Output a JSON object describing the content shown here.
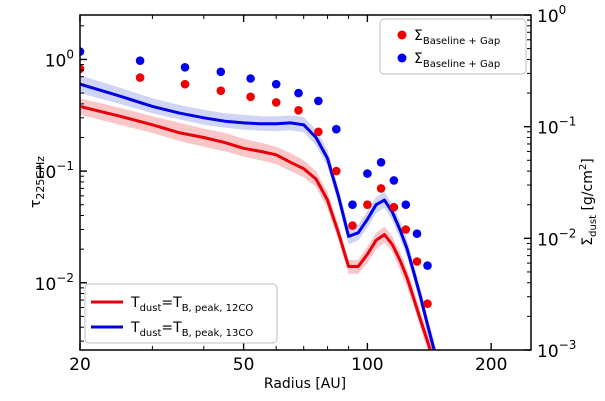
{
  "chart_data": {
    "type": "line",
    "xlabel": "Radius [AU]",
    "ylabel": {
      "base": "τ",
      "sub": "225GHz"
    },
    "y2label": {
      "base": "Σ",
      "sub": "dust",
      "suffix": " [g/cm",
      "sup": "2",
      "end": "]"
    },
    "x_scale": "log",
    "y_scale": "log",
    "y2_scale": "log",
    "xlim": [
      20,
      250
    ],
    "ylim": [
      0.0025,
      2.5
    ],
    "y2lim": [
      0.001,
      1.0
    ],
    "x_ticks": [
      {
        "value": 20,
        "label": "20"
      },
      {
        "value": 50,
        "label": "50"
      },
      {
        "value": 100,
        "label": "100"
      },
      {
        "value": 200,
        "label": "200"
      }
    ],
    "y_ticks": [
      {
        "value": 0.01,
        "base": "10",
        "exp": "−2"
      },
      {
        "value": 0.1,
        "base": "10",
        "exp": "−1"
      },
      {
        "value": 1,
        "base": "10",
        "exp": "0"
      }
    ],
    "y2_ticks": [
      {
        "value": 0.001,
        "base": "10",
        "exp": "−3"
      },
      {
        "value": 0.01,
        "base": "10",
        "exp": "−2"
      },
      {
        "value": 0.1,
        "base": "10",
        "exp": "−1"
      },
      {
        "value": 1,
        "base": "10",
        "exp": "0"
      }
    ],
    "line_series": [
      {
        "color": "#e8000b",
        "band_color": "#e8000b",
        "legend": {
          "base": "T",
          "sub1": "dust",
          "mid": "=T",
          "sub2": "B, peak, 12CO"
        },
        "x": [
          20,
          25,
          30,
          35,
          40,
          45,
          50,
          55,
          60,
          65,
          70,
          75,
          80,
          85,
          90,
          95,
          100,
          105,
          110,
          115,
          120,
          125,
          130,
          135,
          140,
          145
        ],
        "y": [
          0.38,
          0.31,
          0.26,
          0.22,
          0.2,
          0.18,
          0.16,
          0.15,
          0.14,
          0.12,
          0.105,
          0.085,
          0.055,
          0.028,
          0.014,
          0.014,
          0.018,
          0.024,
          0.027,
          0.022,
          0.016,
          0.011,
          0.007,
          0.0045,
          0.003,
          0.002
        ],
        "lo": [
          0.32,
          0.26,
          0.22,
          0.185,
          0.165,
          0.15,
          0.135,
          0.125,
          0.115,
          0.1,
          0.088,
          0.072,
          0.046,
          0.024,
          0.012,
          0.012,
          0.015,
          0.02,
          0.023,
          0.019,
          0.013,
          0.009,
          0.006,
          0.0038,
          0.0025,
          0.0017
        ],
        "hi": [
          0.45,
          0.37,
          0.31,
          0.27,
          0.24,
          0.22,
          0.195,
          0.18,
          0.165,
          0.145,
          0.125,
          0.1,
          0.065,
          0.033,
          0.016,
          0.016,
          0.021,
          0.028,
          0.032,
          0.026,
          0.019,
          0.013,
          0.0085,
          0.0053,
          0.0036,
          0.0024
        ]
      },
      {
        "color": "#0000e6",
        "band_color": "#2b3fd0",
        "legend": {
          "base": "T",
          "sub1": "dust",
          "mid": "=T",
          "sub2": "B, peak, 13CO"
        },
        "x": [
          20,
          25,
          30,
          35,
          40,
          45,
          50,
          55,
          60,
          65,
          70,
          75,
          80,
          85,
          90,
          95,
          100,
          105,
          110,
          115,
          120,
          125,
          130,
          135,
          140,
          145,
          150
        ],
        "y": [
          0.6,
          0.47,
          0.38,
          0.33,
          0.3,
          0.28,
          0.27,
          0.265,
          0.265,
          0.27,
          0.26,
          0.2,
          0.13,
          0.06,
          0.026,
          0.028,
          0.037,
          0.05,
          0.055,
          0.043,
          0.03,
          0.02,
          0.012,
          0.0072,
          0.0042,
          0.0026,
          0.0015
        ],
        "lo": [
          0.5,
          0.4,
          0.33,
          0.29,
          0.26,
          0.245,
          0.235,
          0.23,
          0.228,
          0.232,
          0.222,
          0.17,
          0.11,
          0.051,
          0.022,
          0.024,
          0.031,
          0.042,
          0.047,
          0.036,
          0.025,
          0.017,
          0.0102,
          0.0061,
          0.0036,
          0.0022,
          0.0013
        ],
        "hi": [
          0.72,
          0.56,
          0.45,
          0.39,
          0.355,
          0.33,
          0.32,
          0.31,
          0.31,
          0.315,
          0.305,
          0.235,
          0.155,
          0.071,
          0.031,
          0.033,
          0.044,
          0.059,
          0.065,
          0.051,
          0.036,
          0.024,
          0.0142,
          0.0085,
          0.005,
          0.0031,
          0.0018
        ]
      }
    ],
    "scatter_series": [
      {
        "color": "#f00000",
        "legend": {
          "base": "Σ",
          "sub": "Baseline + Gap"
        },
        "x": [
          20,
          28,
          36,
          44,
          52,
          60,
          68,
          76,
          84,
          92,
          100,
          108,
          116,
          124,
          132,
          140
        ],
        "y": [
          0.33,
          0.275,
          0.24,
          0.21,
          0.185,
          0.165,
          0.14,
          0.09,
          0.04,
          0.013,
          0.02,
          0.028,
          0.019,
          0.012,
          0.0062,
          0.0026
        ]
      },
      {
        "color": "#0000f0",
        "legend": {
          "base": "Σ",
          "sub": "Baseline + Gap"
        },
        "x": [
          20,
          28,
          36,
          44,
          52,
          60,
          68,
          76,
          84,
          92,
          100,
          108,
          116,
          124,
          132,
          140
        ],
        "y": [
          0.47,
          0.39,
          0.34,
          0.31,
          0.27,
          0.24,
          0.2,
          0.17,
          0.095,
          0.02,
          0.038,
          0.048,
          0.033,
          0.02,
          0.011,
          0.0057
        ]
      }
    ]
  }
}
